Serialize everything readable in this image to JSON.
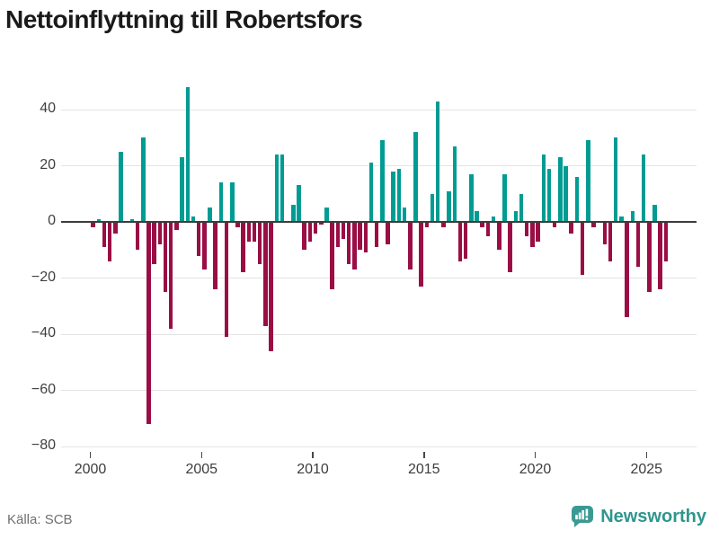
{
  "title": "Nettoinflyttning till Robertsfors",
  "source": {
    "label": "Källa: SCB"
  },
  "brand": {
    "name": "Newsworthy",
    "icon": "newsworthy-speech-bubble-bar-chart-icon",
    "color": "#2f968e",
    "icon_color": "#3a9a93"
  },
  "colors": {
    "positive_bar": "#009c93",
    "negative_bar": "#9a0e45",
    "gridline": "#e4e4e4",
    "zero_line": "#3c3c3c",
    "axis_text": "#3c3c3c",
    "title_text": "#1a1a1a",
    "source_text": "#707070",
    "background": "#ffffff"
  },
  "chart_data": {
    "type": "bar",
    "title": "Nettoinflyttning till Robertsfors",
    "xlabel": "",
    "ylabel": "",
    "grid": true,
    "legend": false,
    "x_axis": {
      "tick_labels": [
        "2000",
        "2005",
        "2010",
        "2015",
        "2020",
        "2025"
      ],
      "tick_years": [
        2000,
        2005,
        2010,
        2015,
        2020,
        2025
      ],
      "start": "2000-Q1",
      "end": "2025-Q4",
      "frequency": "quarterly"
    },
    "y_axis": {
      "tick_values": [
        40,
        20,
        0,
        -20,
        -40,
        -60,
        -80
      ],
      "tick_labels": [
        "40",
        "20",
        "0",
        "−20",
        "−40",
        "−60",
        "−80"
      ],
      "range": [
        -80,
        50
      ]
    },
    "series": [
      {
        "name": "Nettoinflyttning",
        "positive_color": "#009c93",
        "negative_color": "#9a0e45",
        "values_by_year": {
          "2000": [
            -2,
            1,
            -9,
            -14
          ],
          "2001": [
            -4,
            25,
            0,
            1
          ],
          "2002": [
            -10,
            30,
            -72,
            -15
          ],
          "2003": [
            -8,
            -25,
            -38,
            -3
          ],
          "2004": [
            23,
            48,
            2,
            -12
          ],
          "2005": [
            -17,
            5,
            -24,
            14
          ],
          "2006": [
            -41,
            14,
            -2,
            -18
          ],
          "2007": [
            -7,
            -7,
            -15,
            -37
          ],
          "2008": [
            -46,
            24,
            24,
            0
          ],
          "2009": [
            6,
            13,
            -10,
            -7
          ],
          "2010": [
            -4,
            -1,
            5,
            -24
          ],
          "2011": [
            -9,
            -6,
            -15,
            -17
          ],
          "2012": [
            -10,
            -11,
            21,
            -9
          ],
          "2013": [
            29,
            -8,
            18,
            19
          ],
          "2014": [
            5,
            -17,
            32,
            -23
          ],
          "2015": [
            -2,
            10,
            43,
            -2
          ],
          "2016": [
            11,
            27,
            -14,
            -13
          ],
          "2017": [
            17,
            4,
            -2,
            -5
          ],
          "2018": [
            2,
            -10,
            17,
            -18
          ],
          "2019": [
            4,
            10,
            -5,
            -9
          ],
          "2020": [
            -7,
            24,
            19,
            -2
          ],
          "2021": [
            23,
            20,
            -4,
            16
          ],
          "2022": [
            -19,
            29,
            -2,
            0
          ],
          "2023": [
            -8,
            -14,
            30,
            2
          ],
          "2024": [
            -34,
            4,
            -16,
            24
          ],
          "2025": [
            -25,
            6,
            -24,
            -14
          ]
        }
      }
    ]
  }
}
